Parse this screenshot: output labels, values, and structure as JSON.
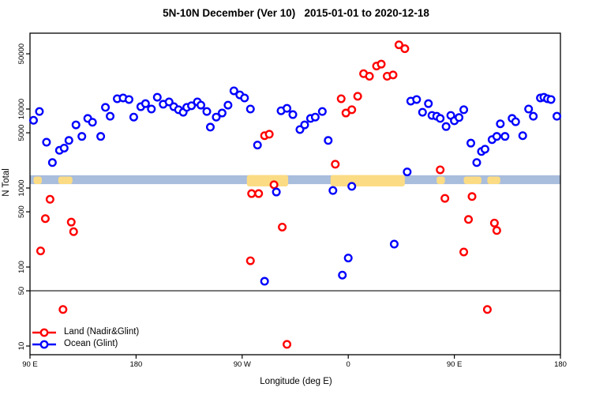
{
  "chart_data": {
    "type": "scatter",
    "title": "5N-10N December (Ver 10)   2015-01-01 to 2020-12-18",
    "xlabel": "Longitude (deg E)",
    "ylabel": "N Total",
    "x_axis": {
      "min": 90,
      "max": 540,
      "ticks": [
        90,
        180,
        270,
        360,
        450,
        540
      ],
      "tick_labels": [
        "90 E",
        "180",
        "90 W",
        "0",
        "90 E",
        "180"
      ],
      "note": "longitude axis wraps eastward: 90E to 180 to 90W to 0 to 90E to 180"
    },
    "y_axis": {
      "scale": "log10",
      "range": [
        7.8,
        91000
      ],
      "ticks": [
        10,
        50,
        100,
        500,
        1000,
        5000,
        10000,
        50000
      ],
      "tick_labels": [
        "10",
        "50",
        "100",
        "500",
        "1000",
        "5000",
        "10000",
        "50000"
      ]
    },
    "reference_line": {
      "y": 50,
      "color": "#3a3a3a"
    },
    "surface_band": {
      "description": "ocean/land strip drawn across plot near N=1100-1450",
      "n_range": [
        1120,
        1450
      ],
      "ocean_color": "#a9bddc",
      "land_color": "#fbdc85",
      "land_segments": [
        {
          "from": 93,
          "to": 100,
          "tall": false
        },
        {
          "from": 114,
          "to": 126,
          "tall": false
        },
        {
          "from": 274,
          "to": 309,
          "tall": true
        },
        {
          "from": 345,
          "to": 408,
          "tall": true
        },
        {
          "from": 435,
          "to": 442,
          "tall": false
        },
        {
          "from": 458,
          "to": 473,
          "tall": false
        },
        {
          "from": 478,
          "to": 489,
          "tall": false
        }
      ]
    },
    "legend_position": "bottom-left",
    "series": [
      {
        "name": "Land (Nadir&Glint)",
        "color": "#ff0000",
        "points": [
          [
            107,
            720
          ],
          [
            103,
            410
          ],
          [
            99,
            160
          ],
          [
            125,
            370
          ],
          [
            127,
            280
          ],
          [
            118,
            29
          ],
          [
            289,
            4600
          ],
          [
            293,
            4800
          ],
          [
            278,
            850
          ],
          [
            284,
            850
          ],
          [
            297,
            1100
          ],
          [
            277,
            120
          ],
          [
            304,
            320
          ],
          [
            308,
            10.5
          ],
          [
            349,
            2000
          ],
          [
            354,
            13500
          ],
          [
            358,
            8900
          ],
          [
            363,
            9800
          ],
          [
            368,
            14500
          ],
          [
            373,
            28000
          ],
          [
            378,
            26000
          ],
          [
            384,
            35000
          ],
          [
            388,
            37000
          ],
          [
            393,
            26000
          ],
          [
            398,
            27000
          ],
          [
            403,
            65000
          ],
          [
            408,
            58000
          ],
          [
            438,
            1700
          ],
          [
            442,
            740
          ],
          [
            465,
            780
          ],
          [
            462,
            400
          ],
          [
            484,
            360
          ],
          [
            486,
            290
          ],
          [
            458,
            155
          ],
          [
            478,
            29
          ]
        ]
      },
      {
        "name": "Ocean (Glint)",
        "color": "#0000ff",
        "points": [
          [
            93,
            7200
          ],
          [
            98,
            9300
          ],
          [
            104,
            3800
          ],
          [
            109,
            2100
          ],
          [
            115,
            3000
          ],
          [
            119,
            3200
          ],
          [
            123,
            4000
          ],
          [
            129,
            6300
          ],
          [
            134,
            4500
          ],
          [
            139,
            7600
          ],
          [
            143,
            6800
          ],
          [
            150,
            4500
          ],
          [
            154,
            10500
          ],
          [
            158,
            8100
          ],
          [
            164,
            13500
          ],
          [
            169,
            13800
          ],
          [
            174,
            13200
          ],
          [
            178,
            7900
          ],
          [
            184,
            10700
          ],
          [
            188,
            11700
          ],
          [
            193,
            10000
          ],
          [
            198,
            14100
          ],
          [
            203,
            11500
          ],
          [
            208,
            12300
          ],
          [
            212,
            10700
          ],
          [
            216,
            9800
          ],
          [
            220,
            9100
          ],
          [
            223,
            10500
          ],
          [
            227,
            11000
          ],
          [
            232,
            12300
          ],
          [
            235,
            11200
          ],
          [
            240,
            9300
          ],
          [
            243,
            5900
          ],
          [
            248,
            7900
          ],
          [
            253,
            8900
          ],
          [
            258,
            11200
          ],
          [
            263,
            17000
          ],
          [
            268,
            15100
          ],
          [
            272,
            13800
          ],
          [
            277,
            10000
          ],
          [
            283,
            3500
          ],
          [
            299,
            890
          ],
          [
            303,
            9500
          ],
          [
            308,
            10200
          ],
          [
            313,
            8500
          ],
          [
            319,
            5500
          ],
          [
            323,
            6300
          ],
          [
            328,
            7600
          ],
          [
            332,
            7900
          ],
          [
            338,
            9300
          ],
          [
            343,
            4000
          ],
          [
            347,
            930
          ],
          [
            363,
            1050
          ],
          [
            410,
            1600
          ],
          [
            413,
            12600
          ],
          [
            418,
            13200
          ],
          [
            423,
            9100
          ],
          [
            428,
            11700
          ],
          [
            431,
            8300
          ],
          [
            435,
            8100
          ],
          [
            438,
            7600
          ],
          [
            443,
            6000
          ],
          [
            447,
            8300
          ],
          [
            450,
            7100
          ],
          [
            454,
            7800
          ],
          [
            458,
            9800
          ],
          [
            464,
            3700
          ],
          [
            469,
            2100
          ],
          [
            473,
            2900
          ],
          [
            476,
            3100
          ],
          [
            482,
            4100
          ],
          [
            486,
            4500
          ],
          [
            489,
            6500
          ],
          [
            493,
            4500
          ],
          [
            499,
            7600
          ],
          [
            502,
            6900
          ],
          [
            508,
            4600
          ],
          [
            513,
            10000
          ],
          [
            517,
            8100
          ],
          [
            523,
            13800
          ],
          [
            526,
            14100
          ],
          [
            529,
            13500
          ],
          [
            532,
            13200
          ],
          [
            537,
            8100
          ],
          [
            289,
            66
          ],
          [
            355,
            79
          ],
          [
            360,
            130
          ],
          [
            399,
            195
          ]
        ]
      }
    ]
  }
}
